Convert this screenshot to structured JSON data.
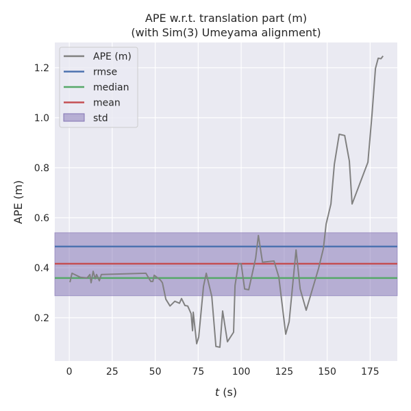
{
  "chart_data": {
    "type": "line",
    "title": "APE w.r.t. translation part (m)",
    "subtitle": "(with Sim(3) Umeyama alignment)",
    "xlabel_italic": "t",
    "xlabel_unit": " (s)",
    "ylabel": "APE (m)",
    "xlim": [
      -8.4,
      190.8
    ],
    "ylim": [
      0.027,
      1.301
    ],
    "xticks": [
      0,
      25,
      50,
      75,
      100,
      125,
      150,
      175
    ],
    "xtick_labels": [
      "0",
      "25",
      "50",
      "75",
      "100",
      "125",
      "150",
      "175"
    ],
    "yticks": [
      0.2,
      0.4,
      0.6,
      0.8,
      1.0,
      1.2
    ],
    "ytick_labels": [
      "0.2",
      "0.4",
      "0.6",
      "0.8",
      "1.0",
      "1.2"
    ],
    "grid": true,
    "legend_position": "top-left",
    "series": [
      {
        "name": "APE (m)",
        "color": "#808080",
        "x": [
          0.4,
          1.6,
          6.4,
          10.4,
          12.0,
          12.7,
          13.9,
          15.1,
          15.9,
          17.5,
          18.7,
          44.6,
          47.4,
          48.6,
          49.4,
          53.0,
          54.2,
          56.2,
          58.6,
          61.4,
          64.1,
          65.3,
          67.3,
          68.9,
          70.9,
          71.7,
          72.1,
          74.1,
          75.3,
          78.1,
          79.7,
          82.9,
          85.3,
          87.6,
          89.2,
          92.0,
          95.6,
          96.4,
          98.4,
          100.0,
          102.0,
          104.4,
          108.4,
          110.0,
          112.4,
          119.1,
          121.9,
          125.9,
          127.9,
          131.9,
          134.3,
          137.8,
          145.0,
          147.8,
          149.4,
          152.2,
          154.2,
          157.0,
          160.2,
          162.9,
          164.5,
          173.7,
          176.1,
          178.1,
          179.7,
          181.3,
          182.5
        ],
        "y": [
          0.342,
          0.378,
          0.362,
          0.359,
          0.373,
          0.34,
          0.386,
          0.356,
          0.373,
          0.348,
          0.373,
          0.378,
          0.345,
          0.345,
          0.37,
          0.351,
          0.34,
          0.274,
          0.247,
          0.266,
          0.258,
          0.277,
          0.249,
          0.247,
          0.216,
          0.148,
          0.222,
          0.096,
          0.123,
          0.326,
          0.378,
          0.285,
          0.085,
          0.082,
          0.227,
          0.104,
          0.142,
          0.329,
          0.416,
          0.416,
          0.315,
          0.312,
          0.438,
          0.529,
          0.422,
          0.427,
          0.362,
          0.134,
          0.184,
          0.471,
          0.315,
          0.23,
          0.397,
          0.477,
          0.575,
          0.655,
          0.814,
          0.934,
          0.929,
          0.827,
          0.655,
          0.822,
          1.014,
          1.197,
          1.238,
          1.236,
          1.247
        ]
      },
      {
        "name": "rmse",
        "color": "#4c72b0",
        "value": 0.485
      },
      {
        "name": "median",
        "color": "#55a868",
        "value": 0.359
      },
      {
        "name": "mean",
        "color": "#c44e52",
        "value": 0.416
      },
      {
        "name": "std",
        "color": "#8172b3",
        "range": [
          0.288,
          0.54
        ]
      }
    ]
  }
}
